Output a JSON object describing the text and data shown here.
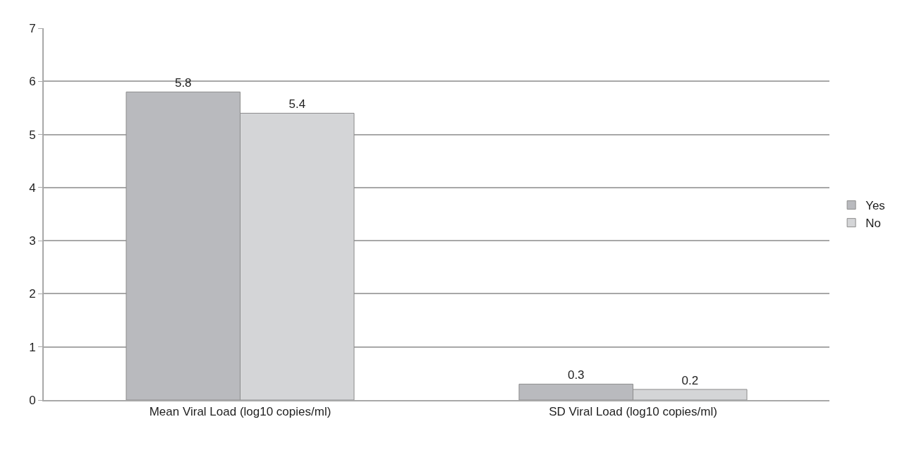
{
  "chart_data": {
    "type": "bar",
    "categories": [
      "Mean Viral Load (log10 copies/ml)",
      "SD Viral Load (log10 copies/ml)"
    ],
    "series": [
      {
        "name": "Yes",
        "color": "#b9babe",
        "values": [
          5.8,
          0.3
        ]
      },
      {
        "name": "No",
        "color": "#d4d5d7",
        "values": [
          5.4,
          0.2
        ]
      }
    ],
    "ylim": [
      0,
      7
    ],
    "yticks": [
      0,
      1,
      2,
      3,
      4,
      5,
      6,
      7
    ],
    "grid": "y",
    "legend": "right",
    "data_labels": true
  }
}
